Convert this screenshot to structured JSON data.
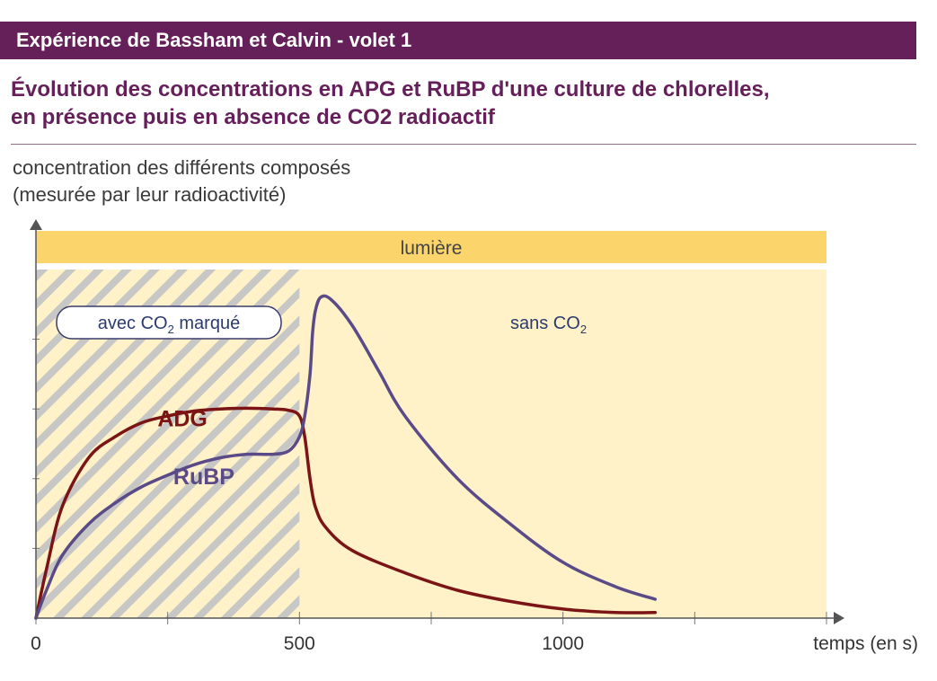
{
  "header": {
    "title": "Expérience de Bassham et Calvin - volet 1"
  },
  "subtitle": {
    "line1": "Évolution des concentrations en APG et RuBP d'une culture de chlorelles,",
    "line2": "en présence puis en absence de CO2 radioactif"
  },
  "chart_data": {
    "type": "line",
    "ylabel_line1": "concentration des différents composés",
    "ylabel_line2": "(mesurée par leur radioactivité)",
    "xlabel": "temps (en s)",
    "xlim": [
      0,
      1500
    ],
    "ylim": [
      0,
      5
    ],
    "x_ticks": [
      0,
      500,
      1000
    ],
    "x_tick_labels": [
      "0",
      "500",
      "1000"
    ],
    "band_label": "lumière",
    "region_with_label": "avec CO",
    "region_with_sub": "2",
    "region_with_suffix": " marqué",
    "region_without_label": "sans CO",
    "region_without_sub": "2",
    "region_boundary_x": 500,
    "series": [
      {
        "name": "ADG",
        "color": "#7b1414",
        "x": [
          0,
          20,
          50,
          100,
          150,
          200,
          250,
          300,
          350,
          400,
          450,
          480,
          500,
          510,
          520,
          530,
          550,
          600,
          700,
          800,
          900,
          1000,
          1100,
          1175
        ],
        "y": [
          0,
          0.7,
          1.6,
          2.3,
          2.6,
          2.8,
          2.9,
          2.97,
          3.0,
          3.01,
          3.0,
          2.98,
          2.9,
          2.6,
          2.0,
          1.6,
          1.3,
          0.97,
          0.65,
          0.4,
          0.24,
          0.13,
          0.08,
          0.08
        ]
      },
      {
        "name": "RuBP",
        "color": "#5a4a87",
        "x": [
          0,
          20,
          50,
          100,
          150,
          200,
          250,
          300,
          350,
          400,
          450,
          480,
          500,
          510,
          520,
          525,
          530,
          540,
          560,
          600,
          650,
          700,
          800,
          900,
          1000,
          1100,
          1175
        ],
        "y": [
          0,
          0.4,
          0.9,
          1.35,
          1.65,
          1.88,
          2.05,
          2.2,
          2.3,
          2.35,
          2.35,
          2.4,
          2.6,
          2.9,
          3.5,
          4.1,
          4.4,
          4.6,
          4.57,
          4.2,
          3.55,
          2.9,
          2.0,
          1.35,
          0.8,
          0.45,
          0.27
        ]
      }
    ],
    "series_label_positions": [
      {
        "name": "ADG",
        "x": 350,
        "y": 2.7
      },
      {
        "name": "RuBP",
        "x": 380,
        "y": 2.1
      }
    ]
  }
}
